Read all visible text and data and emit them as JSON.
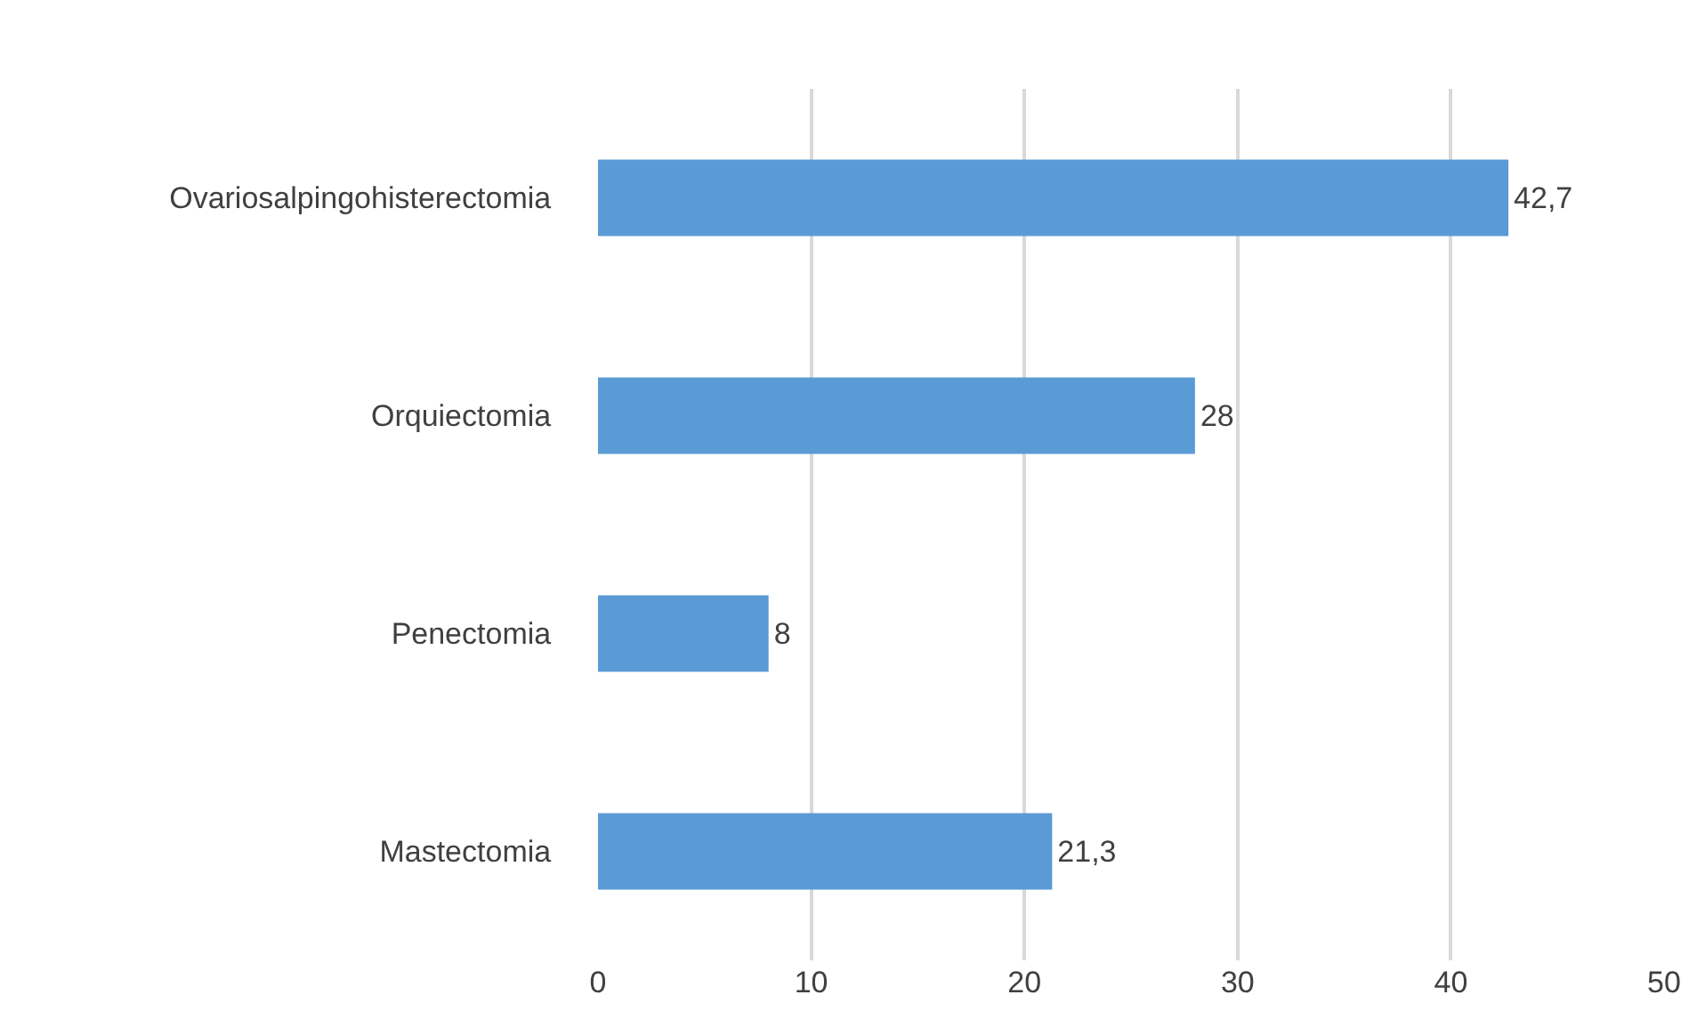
{
  "chart_data": {
    "type": "bar",
    "orientation": "horizontal",
    "categories": [
      "Ovariosalpingohisterectomia",
      "Orquiectomia",
      "Penectomia",
      "Mastectomia"
    ],
    "values": [
      42.7,
      28,
      8,
      21.3
    ],
    "value_labels": [
      "42,7",
      "28",
      "8",
      "21,3"
    ],
    "color": "#5b9bd5",
    "xlim": [
      0,
      50
    ],
    "xticks": [
      0,
      10,
      20,
      30,
      40,
      50
    ],
    "grid": "x",
    "legend": false
  }
}
